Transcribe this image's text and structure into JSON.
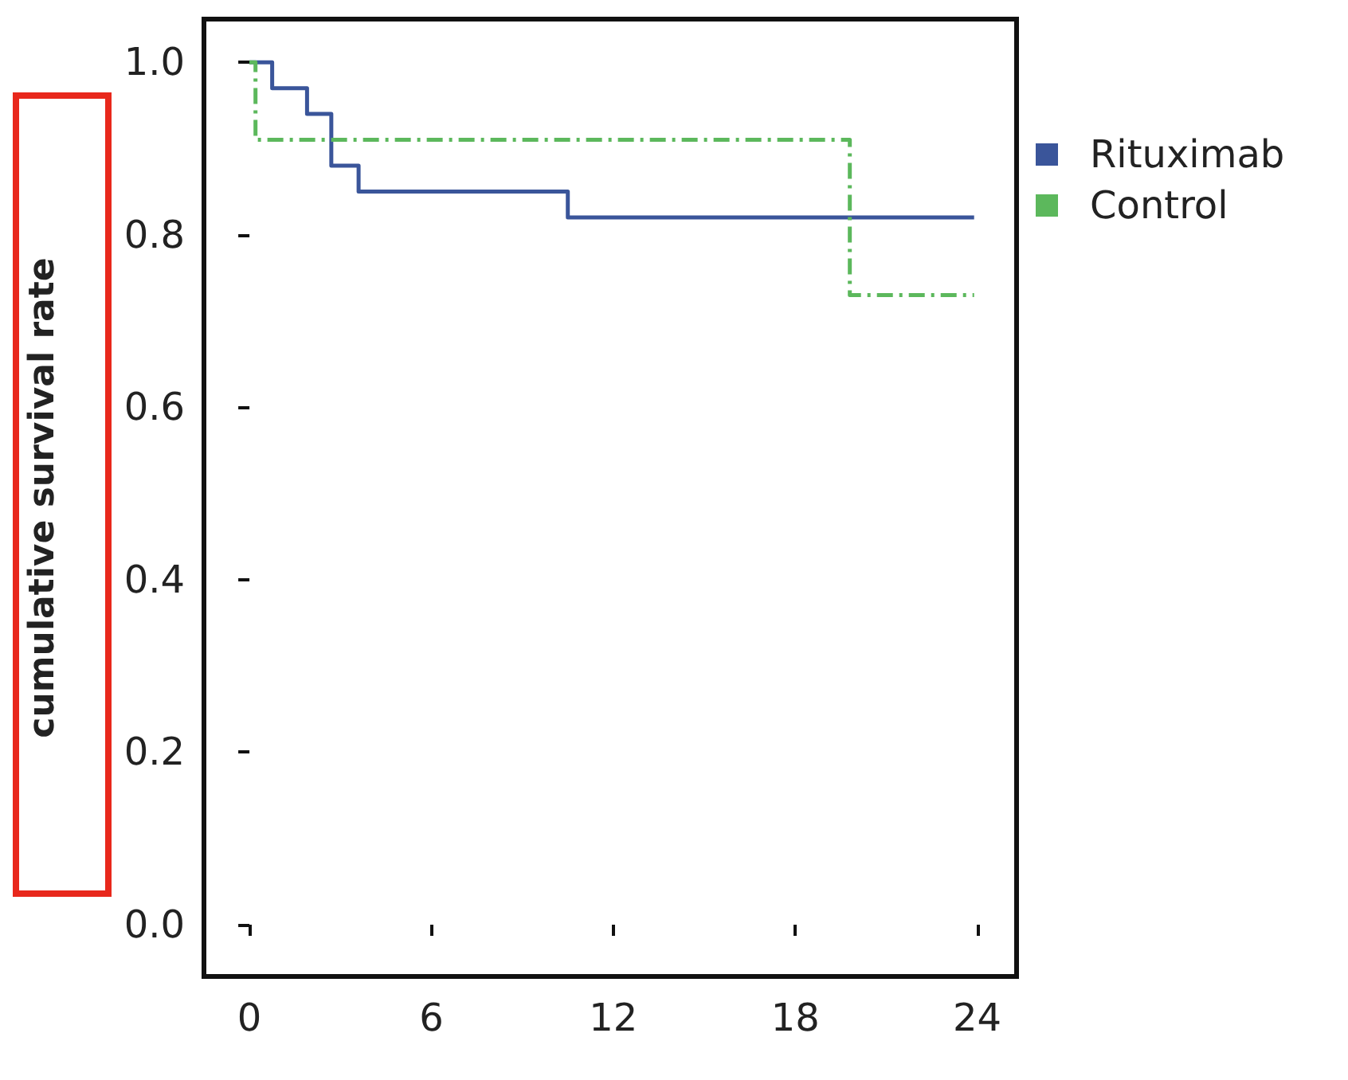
{
  "chart_data": {
    "type": "step",
    "ylabel": "cumulative survival rate",
    "xlim": [
      -1.5,
      25.3
    ],
    "xticks": [
      0,
      6,
      12,
      18,
      24
    ],
    "ylim": [
      -0.06,
      1.05
    ],
    "yticks": [
      {
        "value": 0,
        "label": "0.0"
      },
      0.2,
      0.4,
      0.6,
      0.8,
      {
        "value": 1,
        "label": "1.0"
      }
    ],
    "grid": false,
    "legend": "top right",
    "marker": "none",
    "series": [
      {
        "name": "Rituximab",
        "color": "#3a559a",
        "line_style": "solid",
        "x": [
          0,
          0.75,
          1.9,
          2.7,
          3.6,
          10.5,
          23.9
        ],
        "values": [
          1,
          0.97,
          0.94,
          0.88,
          0.85,
          0.82,
          0.82
        ]
      },
      {
        "name": "Control",
        "color": "#5cb85c",
        "line_style": "dashed",
        "x": [
          0,
          0.2,
          19.8,
          23.9
        ],
        "values": [
          1,
          0.91,
          0.73,
          0.73
        ]
      }
    ]
  }
}
